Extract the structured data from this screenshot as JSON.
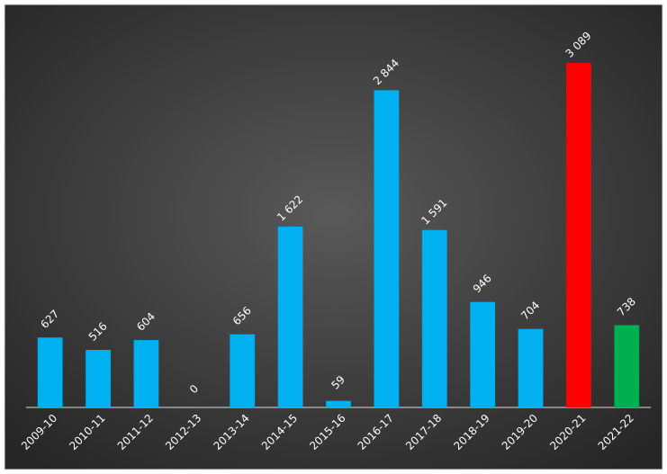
{
  "chart_data": {
    "type": "bar",
    "categories": [
      "2009-10",
      "2010-11",
      "2011-12",
      "2012-13",
      "2013-14",
      "2014-15",
      "2015-16",
      "2016-17",
      "2017-18",
      "2018-19",
      "2019-20",
      "2020-21",
      "2021-22"
    ],
    "values": [
      627,
      516,
      604,
      0,
      656,
      1622,
      59,
      2844,
      1591,
      946,
      704,
      3089,
      738
    ],
    "value_labels": [
      "627",
      "516",
      "604",
      "0",
      "656",
      "1 622",
      "59",
      "2 844",
      "1 591",
      "946",
      "704",
      "3 089",
      "738"
    ],
    "colors": [
      "#00b0f0",
      "#00b0f0",
      "#00b0f0",
      "#00b0f0",
      "#00b0f0",
      "#00b0f0",
      "#00b0f0",
      "#00b0f0",
      "#00b0f0",
      "#00b0f0",
      "#00b0f0",
      "#ff0000",
      "#00b050"
    ],
    "ylim": [
      0,
      3500
    ]
  }
}
